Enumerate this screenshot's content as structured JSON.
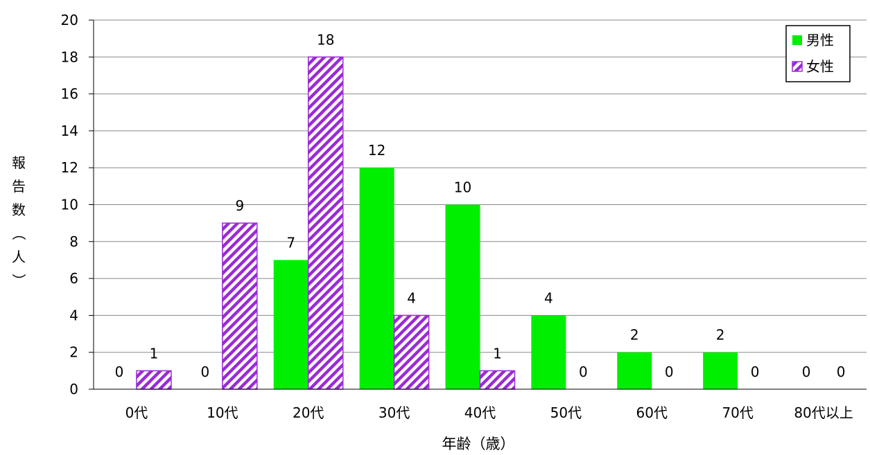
{
  "chart_data": {
    "type": "bar",
    "categories": [
      "0代",
      "10代",
      "20代",
      "30代",
      "40代",
      "50代",
      "60代",
      "70代",
      "80代以上"
    ],
    "series": [
      {
        "name": "男性",
        "values": [
          0,
          0,
          7,
          12,
          10,
          4,
          2,
          2,
          0
        ],
        "color": "#00ee00",
        "pattern": "solid"
      },
      {
        "name": "女性",
        "values": [
          1,
          9,
          18,
          4,
          1,
          0,
          0,
          0,
          0
        ],
        "color": "#9a2bd6",
        "pattern": "diagonal-stripes"
      }
    ],
    "xlabel": "年齢（歳）",
    "ylabel": "報告数（人）",
    "ylim": [
      0,
      20
    ],
    "yticks": [
      0,
      2,
      4,
      6,
      8,
      10,
      12,
      14,
      16,
      18,
      20
    ],
    "grid": true,
    "legend": "top-right",
    "data_labels": true
  }
}
